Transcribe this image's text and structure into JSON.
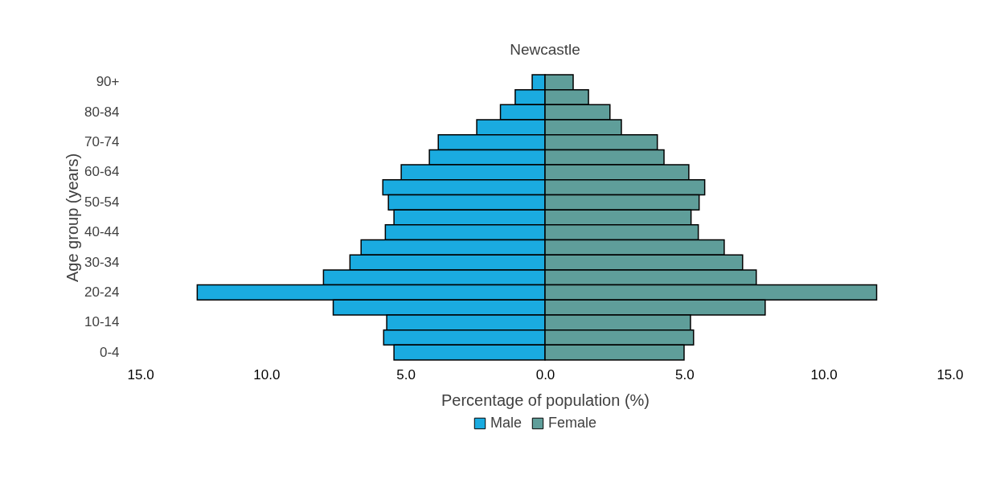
{
  "chart_data": {
    "type": "bar",
    "orientation": "horizontal",
    "title": "Newcastle",
    "xlabel": "Percentage of population (%)",
    "ylabel": "Age group (years)",
    "categories": [
      "90+",
      null,
      "80-84",
      null,
      "70-74",
      null,
      "60-64",
      null,
      "50-54",
      null,
      "40-44",
      null,
      "30-34",
      null,
      "20-24",
      null,
      "10-14",
      null,
      "0-4"
    ],
    "series": [
      {
        "name": "Male",
        "color": "#1aabe0",
        "values": [
          -0.46,
          -1.07,
          -1.6,
          -2.45,
          -3.83,
          -4.15,
          -5.16,
          -5.82,
          -5.62,
          -5.42,
          -5.73,
          -6.6,
          -7.0,
          -7.95,
          -12.48,
          -7.6,
          -5.68,
          -5.79,
          -5.42
        ]
      },
      {
        "name": "Female",
        "color": "#5f9e9a",
        "values": [
          1.01,
          1.56,
          2.33,
          2.74,
          4.03,
          4.27,
          5.16,
          5.73,
          5.53,
          5.24,
          5.5,
          6.43,
          7.09,
          7.58,
          11.9,
          7.9,
          5.22,
          5.33,
          4.99
        ]
      }
    ],
    "xlim": [
      -15,
      15
    ],
    "xticks": [
      {
        "value": -15,
        "label": "15.0"
      },
      {
        "value": -10,
        "label": "10.0"
      },
      {
        "value": -5,
        "label": "5.0"
      },
      {
        "value": 0,
        "label": "0.0"
      },
      {
        "value": 5,
        "label": "5.0"
      },
      {
        "value": 10,
        "label": "10.0"
      },
      {
        "value": 15,
        "label": "15.0"
      }
    ],
    "grid": false,
    "legend": "bottom",
    "stacked": true
  }
}
